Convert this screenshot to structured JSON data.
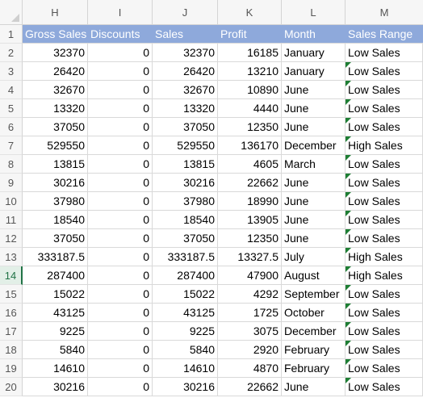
{
  "columns": [
    "H",
    "I",
    "J",
    "K",
    "L",
    "M"
  ],
  "header_row_number": "1",
  "headers": [
    "Gross Sales",
    "Discounts",
    "Sales",
    "Profit",
    "Month",
    "Sales Range"
  ],
  "active_row": "14",
  "rows": [
    {
      "n": "2",
      "gross": "32370",
      "disc": "0",
      "sales": "32370",
      "profit": "16185",
      "month": "January",
      "range": "Low Sales"
    },
    {
      "n": "3",
      "gross": "26420",
      "disc": "0",
      "sales": "26420",
      "profit": "13210",
      "month": "January",
      "range": "Low Sales"
    },
    {
      "n": "4",
      "gross": "32670",
      "disc": "0",
      "sales": "32670",
      "profit": "10890",
      "month": "June",
      "range": "Low Sales"
    },
    {
      "n": "5",
      "gross": "13320",
      "disc": "0",
      "sales": "13320",
      "profit": "4440",
      "month": "June",
      "range": "Low Sales"
    },
    {
      "n": "6",
      "gross": "37050",
      "disc": "0",
      "sales": "37050",
      "profit": "12350",
      "month": "June",
      "range": "Low Sales"
    },
    {
      "n": "7",
      "gross": "529550",
      "disc": "0",
      "sales": "529550",
      "profit": "136170",
      "month": "December",
      "range": "High Sales"
    },
    {
      "n": "8",
      "gross": "13815",
      "disc": "0",
      "sales": "13815",
      "profit": "4605",
      "month": "March",
      "range": "Low Sales"
    },
    {
      "n": "9",
      "gross": "30216",
      "disc": "0",
      "sales": "30216",
      "profit": "22662",
      "month": "June",
      "range": "Low Sales"
    },
    {
      "n": "10",
      "gross": "37980",
      "disc": "0",
      "sales": "37980",
      "profit": "18990",
      "month": "June",
      "range": "Low Sales"
    },
    {
      "n": "11",
      "gross": "18540",
      "disc": "0",
      "sales": "18540",
      "profit": "13905",
      "month": "June",
      "range": "Low Sales"
    },
    {
      "n": "12",
      "gross": "37050",
      "disc": "0",
      "sales": "37050",
      "profit": "12350",
      "month": "June",
      "range": "Low Sales"
    },
    {
      "n": "13",
      "gross": "333187.5",
      "disc": "0",
      "sales": "333187.5",
      "profit": "13327.5",
      "month": "July",
      "range": "High Sales"
    },
    {
      "n": "14",
      "gross": "287400",
      "disc": "0",
      "sales": "287400",
      "profit": "47900",
      "month": "August",
      "range": "High Sales"
    },
    {
      "n": "15",
      "gross": "15022",
      "disc": "0",
      "sales": "15022",
      "profit": "4292",
      "month": "September",
      "range": "Low Sales"
    },
    {
      "n": "16",
      "gross": "43125",
      "disc": "0",
      "sales": "43125",
      "profit": "1725",
      "month": "October",
      "range": "Low Sales"
    },
    {
      "n": "17",
      "gross": "9225",
      "disc": "0",
      "sales": "9225",
      "profit": "3075",
      "month": "December",
      "range": "Low Sales"
    },
    {
      "n": "18",
      "gross": "5840",
      "disc": "0",
      "sales": "5840",
      "profit": "2920",
      "month": "February",
      "range": "Low Sales"
    },
    {
      "n": "19",
      "gross": "14610",
      "disc": "0",
      "sales": "14610",
      "profit": "4870",
      "month": "February",
      "range": "Low Sales"
    },
    {
      "n": "20",
      "gross": "30216",
      "disc": "0",
      "sales": "30216",
      "profit": "22662",
      "month": "June",
      "range": "Low Sales"
    }
  ],
  "colors": {
    "header_fill": "#8ea9db",
    "header_text": "#ffffff",
    "gridline": "#d9d9d9",
    "error_flag": "#1e7e34",
    "active_row_accent": "#217346"
  }
}
